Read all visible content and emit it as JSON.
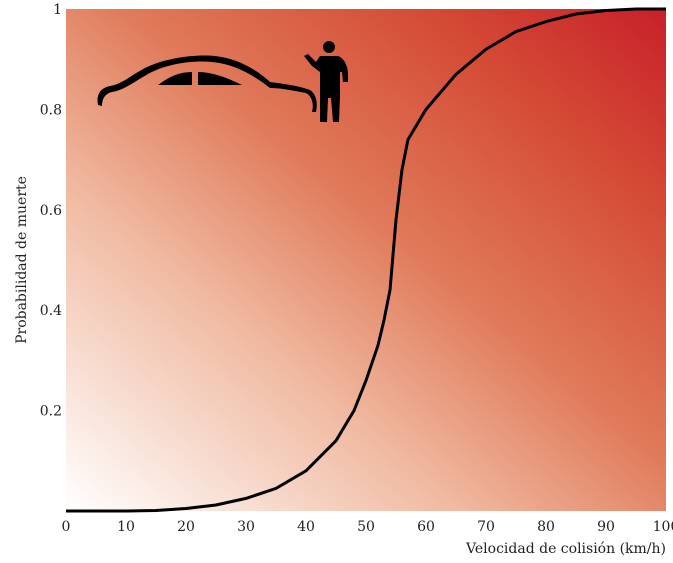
{
  "chart_data": {
    "type": "line",
    "xlabel": "Velocidad de colisión (km/h)",
    "ylabel": "Probabilidad de muerte",
    "xlim": [
      0,
      100
    ],
    "ylim": [
      0,
      1
    ],
    "x_ticks": [
      "0",
      "10",
      "20",
      "30",
      "40",
      "50",
      "60",
      "70",
      "80",
      "90",
      "100"
    ],
    "y_ticks": [
      "0.2",
      "0.4",
      "0.6",
      "0.8",
      "1"
    ],
    "grid": false,
    "background": "gradient white (bottom-left) to red (top-right)",
    "colors": {
      "gradient_start": "#ffffff",
      "gradient_mid": "#e07a5a",
      "gradient_end": "#c8202a",
      "line": "#000000"
    },
    "icons": [
      "car-silhouette-icon",
      "pedestrian-silhouette-icon"
    ],
    "series": [
      {
        "points": [
          [
            0,
            0.0
          ],
          [
            5,
            0.0
          ],
          [
            10,
            0.0
          ],
          [
            15,
            0.001
          ],
          [
            20,
            0.005
          ],
          [
            25,
            0.012
          ],
          [
            30,
            0.025
          ],
          [
            35,
            0.045
          ],
          [
            40,
            0.08
          ],
          [
            45,
            0.14
          ],
          [
            48,
            0.2
          ],
          [
            50,
            0.26
          ],
          [
            52,
            0.33
          ],
          [
            53,
            0.38
          ],
          [
            54,
            0.44
          ],
          [
            55,
            0.58
          ],
          [
            56,
            0.68
          ],
          [
            57,
            0.74
          ],
          [
            60,
            0.8
          ],
          [
            65,
            0.87
          ],
          [
            70,
            0.92
          ],
          [
            75,
            0.955
          ],
          [
            80,
            0.975
          ],
          [
            85,
            0.99
          ],
          [
            90,
            0.997
          ],
          [
            95,
            1.0
          ],
          [
            100,
            1.0
          ]
        ]
      }
    ]
  }
}
